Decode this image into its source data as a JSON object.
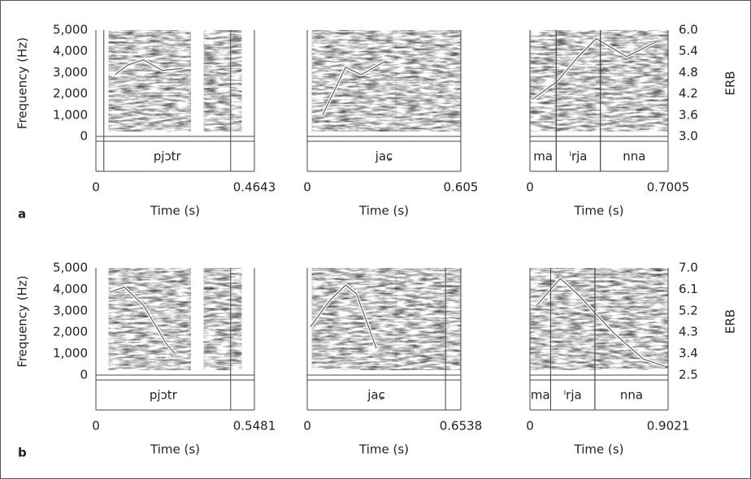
{
  "frequency_label": "Frequency (Hz)",
  "erb_label": "ERB",
  "rows": [
    {
      "label": "a",
      "freq_ticks": [
        "5,000",
        "4,000",
        "3,000",
        "2,000",
        "1,000",
        "0"
      ],
      "erb_ticks": [
        "6.0",
        "5.4",
        "4.8",
        "4.2",
        "3.6",
        "3.0"
      ],
      "panels": [
        {
          "segments": [
            "pjɔtr"
          ],
          "time_start": "0",
          "time_end": "0.4643",
          "time_label": "Time (s)"
        },
        {
          "segments": [
            "jaɕ"
          ],
          "time_start": "0",
          "time_end": "0.605",
          "time_label": "Time (s)"
        },
        {
          "segments": [
            "ma",
            "ˡrja",
            "nna"
          ],
          "time_start": "0",
          "time_end": "0.7005",
          "time_label": "Time (s)"
        }
      ]
    },
    {
      "label": "b",
      "freq_ticks": [
        "5,000",
        "4,000",
        "3,000",
        "2,000",
        "1,000",
        "0"
      ],
      "erb_ticks": [
        "7.0",
        "6.1",
        "5.2",
        "4.3",
        "3.4",
        "2.5"
      ],
      "panels": [
        {
          "segments": [
            "pjɔtr"
          ],
          "time_start": "0",
          "time_end": "0.5481",
          "time_label": "Time (s)"
        },
        {
          "segments": [
            "jaɕ"
          ],
          "time_start": "0",
          "time_end": "0.6538",
          "time_label": "Time (s)"
        },
        {
          "segments": [
            "ma",
            "ˡrja",
            "nna"
          ],
          "time_start": "0",
          "time_end": "0.9021",
          "time_label": "Time (s)"
        }
      ]
    }
  ]
}
